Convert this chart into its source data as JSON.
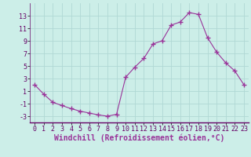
{
  "x": [
    0,
    1,
    2,
    3,
    4,
    5,
    6,
    7,
    8,
    9,
    10,
    11,
    12,
    13,
    14,
    15,
    16,
    17,
    18,
    19,
    20,
    21,
    22,
    23
  ],
  "y": [
    2.0,
    0.5,
    -0.8,
    -1.3,
    -1.8,
    -2.2,
    -2.5,
    -2.8,
    -3.0,
    -2.7,
    3.2,
    4.8,
    6.2,
    8.5,
    9.0,
    11.5,
    12.0,
    13.5,
    13.2,
    9.5,
    7.2,
    5.5,
    4.2,
    2.0
  ],
  "line_color": "#993399",
  "marker": "+",
  "marker_size": 4,
  "bg_color": "#cceee8",
  "grid_color": "#b0d8d4",
  "xlabel": "Windchill (Refroidissement éolien,°C)",
  "xlim": [
    -0.5,
    23.5
  ],
  "ylim": [
    -4,
    15
  ],
  "yticks": [
    -3,
    -1,
    1,
    3,
    5,
    7,
    9,
    11,
    13
  ],
  "xticks": [
    0,
    1,
    2,
    3,
    4,
    5,
    6,
    7,
    8,
    9,
    10,
    11,
    12,
    13,
    14,
    15,
    16,
    17,
    18,
    19,
    20,
    21,
    22,
    23
  ],
  "tick_fontsize": 6,
  "xlabel_fontsize": 7
}
